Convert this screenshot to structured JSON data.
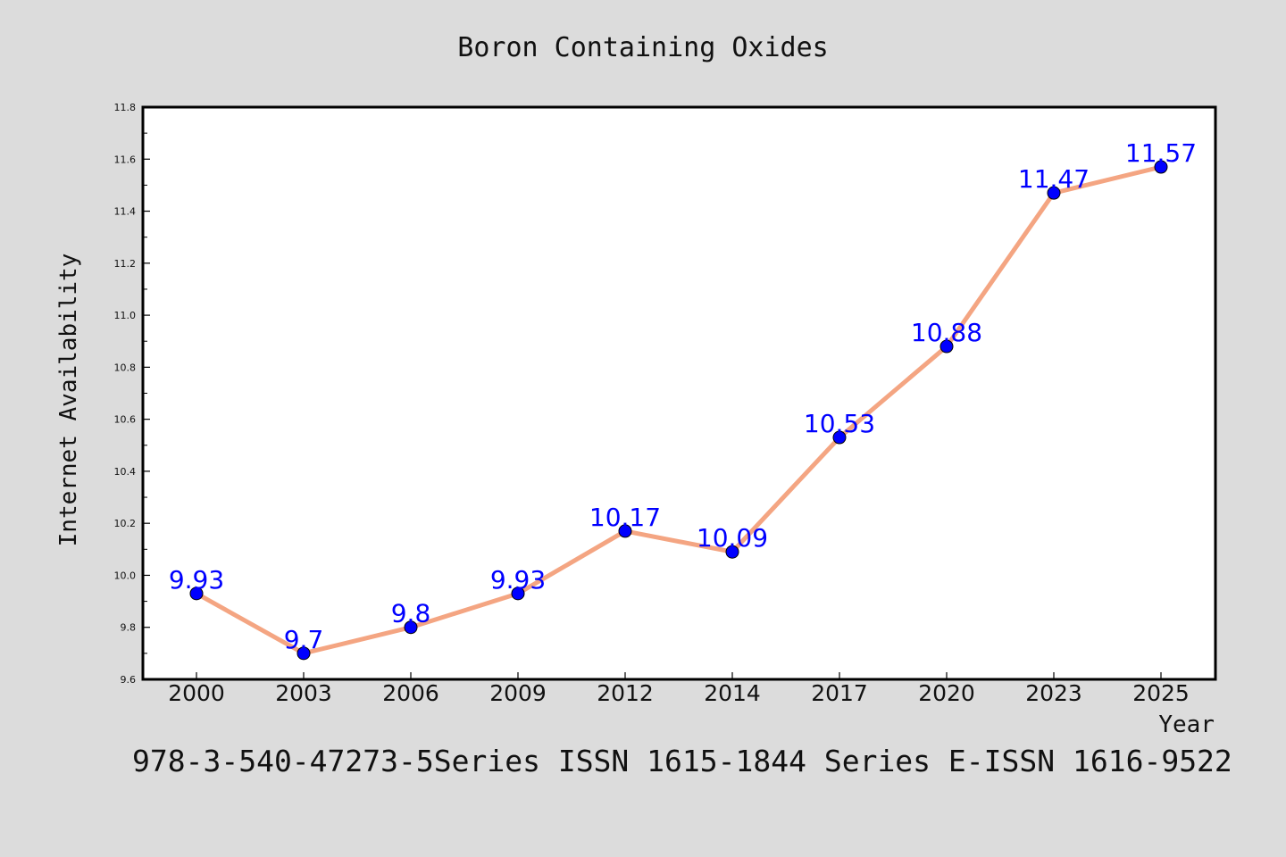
{
  "chart_data": {
    "type": "line",
    "title": "Boron Containing Oxides",
    "xlabel": "Year",
    "ylabel": "Internet Availability",
    "footnote": "978-3-540-47273-5Series ISSN 1615-1844 Series E-ISSN 1616-9522",
    "categories": [
      "2000",
      "2003",
      "2006",
      "2009",
      "2012",
      "2014",
      "2017",
      "2020",
      "2023",
      "2025"
    ],
    "series": [
      {
        "values": [
          9.93,
          9.7,
          9.8,
          9.93,
          10.17,
          10.09,
          10.53,
          10.88,
          11.47,
          11.57
        ]
      }
    ],
    "data_labels": [
      "9.93",
      "9.7",
      "9.8",
      "9.93",
      "10.17",
      "10.09",
      "10.53",
      "10.88",
      "11.47",
      "11.57"
    ],
    "ylim": [
      9.6,
      11.8
    ],
    "yticks": [
      "9.6",
      "9.8",
      "10.0",
      "10.2",
      "10.4",
      "10.6",
      "10.8",
      "11.0",
      "11.2",
      "11.4",
      "11.6",
      "11.8"
    ],
    "grid": false,
    "legend": "none",
    "colors": {
      "background": "#dcdcdc",
      "plot_background": "#ffffff",
      "line": "#f4a582",
      "marker": "#0000ff",
      "label": "#0000ff",
      "text": "#111111"
    }
  }
}
